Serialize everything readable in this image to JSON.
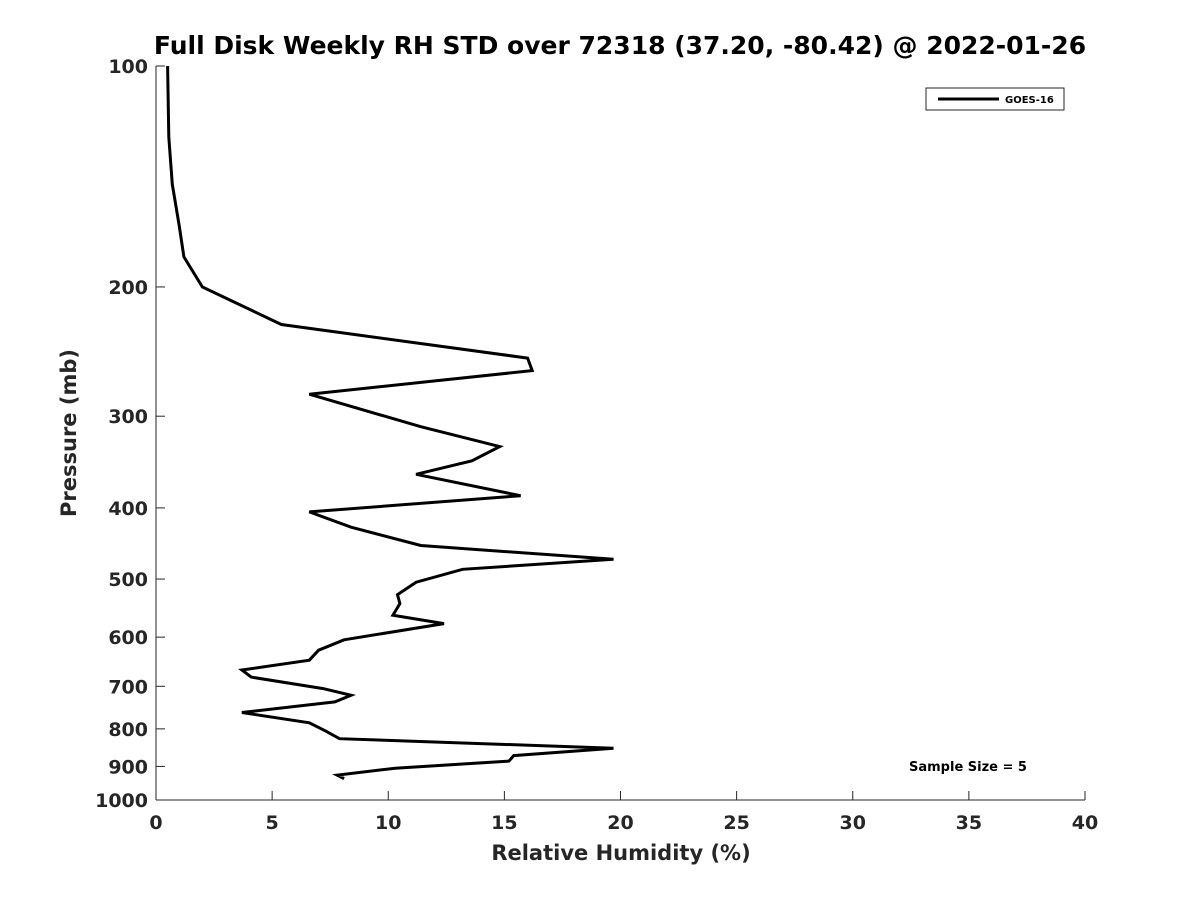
{
  "chart_data": {
    "type": "line",
    "title": "Full Disk Weekly RH STD over 72318 (37.20, -80.42) @ 2022-01-26",
    "xlabel": "Relative Humidity (%)",
    "ylabel": "Pressure (mb)",
    "xlim": [
      0,
      40
    ],
    "ylim": [
      100,
      1000
    ],
    "y_scale": "log",
    "y_reversed": true,
    "x_ticks": [
      0,
      5,
      10,
      15,
      20,
      25,
      30,
      35,
      40
    ],
    "y_ticks": [
      100,
      200,
      300,
      400,
      500,
      600,
      700,
      800,
      900,
      1000
    ],
    "grid": false,
    "legend_position": "top-right",
    "series": [
      {
        "name": "GOES-16",
        "color": "#000000",
        "points": [
          [
            0.5,
            100
          ],
          [
            0.55,
            125
          ],
          [
            0.7,
            145
          ],
          [
            1.0,
            165
          ],
          [
            1.2,
            182
          ],
          [
            2.0,
            200
          ],
          [
            5.4,
            225
          ],
          [
            16.0,
            250
          ],
          [
            16.2,
            260
          ],
          [
            6.6,
            280
          ],
          [
            11.4,
            310
          ],
          [
            14.8,
            330
          ],
          [
            13.6,
            345
          ],
          [
            11.2,
            360
          ],
          [
            15.7,
            385
          ],
          [
            6.6,
            405
          ],
          [
            8.4,
            425
          ],
          [
            11.4,
            450
          ],
          [
            19.7,
            470
          ],
          [
            13.2,
            485
          ],
          [
            11.2,
            505
          ],
          [
            10.4,
            525
          ],
          [
            10.5,
            540
          ],
          [
            10.2,
            560
          ],
          [
            12.4,
            575
          ],
          [
            8.1,
            605
          ],
          [
            7.0,
            625
          ],
          [
            6.6,
            645
          ],
          [
            3.7,
            665
          ],
          [
            4.1,
            680
          ],
          [
            7.2,
            705
          ],
          [
            8.4,
            720
          ],
          [
            7.7,
            735
          ],
          [
            3.7,
            760
          ],
          [
            6.6,
            785
          ],
          [
            7.3,
            805
          ],
          [
            7.9,
            825
          ],
          [
            19.7,
            850
          ],
          [
            15.4,
            870
          ],
          [
            15.2,
            885
          ],
          [
            10.3,
            905
          ],
          [
            7.8,
            925
          ],
          [
            8.1,
            935
          ]
        ]
      }
    ],
    "annotations": [
      "Sample Size = 5"
    ]
  }
}
